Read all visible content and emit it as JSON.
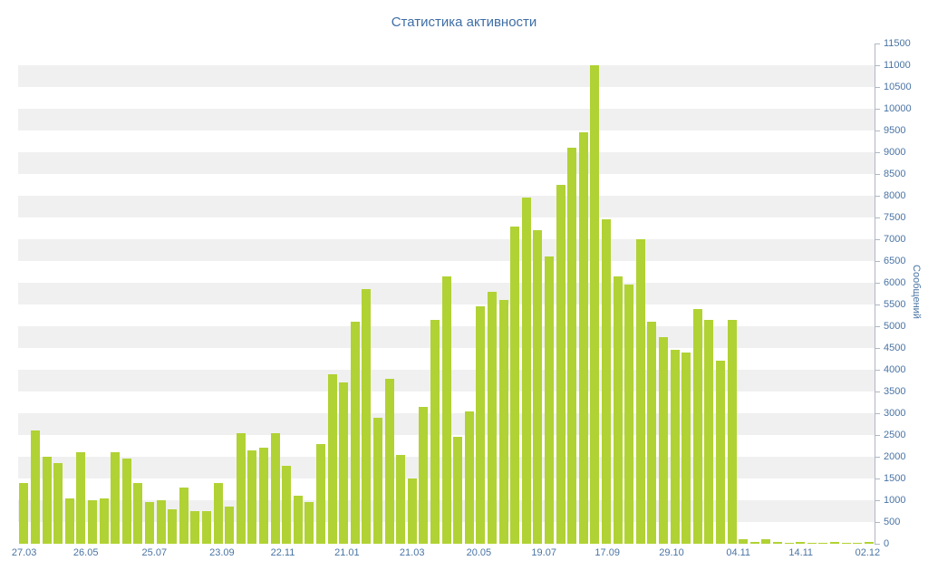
{
  "page": {
    "background": "#ffffff"
  },
  "chart_data": {
    "type": "bar",
    "title": "Статистика активности",
    "xlabel": "",
    "ylabel": "Сообщений",
    "ylim": [
      0,
      11500
    ],
    "y_tick_step": 500,
    "grid": "horizontal-stripes",
    "legend": "none",
    "colors": {
      "bar": "#b1d234",
      "stripe": "#f0f0f0",
      "axis": "#b0b7c3",
      "text": "#4a74a4",
      "title_text": "#3f6ea6"
    },
    "y_ticks": [
      0,
      500,
      1000,
      1500,
      2000,
      2500,
      3000,
      3500,
      4000,
      4500,
      5000,
      5500,
      6000,
      6500,
      7000,
      7500,
      8000,
      8500,
      9000,
      9500,
      10000,
      10500,
      11000,
      11500
    ],
    "x_tick_labels": [
      {
        "label": "27.03",
        "pos": 0.007
      },
      {
        "label": "26.05",
        "pos": 0.079
      },
      {
        "label": "25.07",
        "pos": 0.159
      },
      {
        "label": "23.09",
        "pos": 0.238
      },
      {
        "label": "22.11",
        "pos": 0.309
      },
      {
        "label": "21.01",
        "pos": 0.384
      },
      {
        "label": "21.03",
        "pos": 0.46
      },
      {
        "label": "20.05",
        "pos": 0.538
      },
      {
        "label": "19.07",
        "pos": 0.614
      },
      {
        "label": "17.09",
        "pos": 0.688
      },
      {
        "label": "29.10",
        "pos": 0.763
      },
      {
        "label": "04.11",
        "pos": 0.841
      },
      {
        "label": "14.11",
        "pos": 0.914
      },
      {
        "label": "02.12",
        "pos": 0.992
      }
    ],
    "values": [
      1400,
      2600,
      2000,
      1850,
      1050,
      2100,
      1000,
      1050,
      2100,
      1950,
      1400,
      950,
      1000,
      800,
      1300,
      750,
      750,
      1400,
      850,
      2550,
      2150,
      2200,
      2550,
      1800,
      1100,
      950,
      2300,
      3900,
      3700,
      5100,
      5850,
      2900,
      3800,
      2050,
      1500,
      3150,
      5150,
      6150,
      2450,
      3050,
      5450,
      5800,
      5600,
      7300,
      7950,
      7200,
      6600,
      8250,
      9100,
      9450,
      11000,
      7450,
      6150,
      5950,
      7000,
      5100,
      4750,
      4450,
      4400,
      5400,
      5150,
      4200,
      5150,
      100,
      50,
      110,
      50,
      30,
      50,
      30,
      30,
      40,
      30,
      30,
      40
    ]
  }
}
